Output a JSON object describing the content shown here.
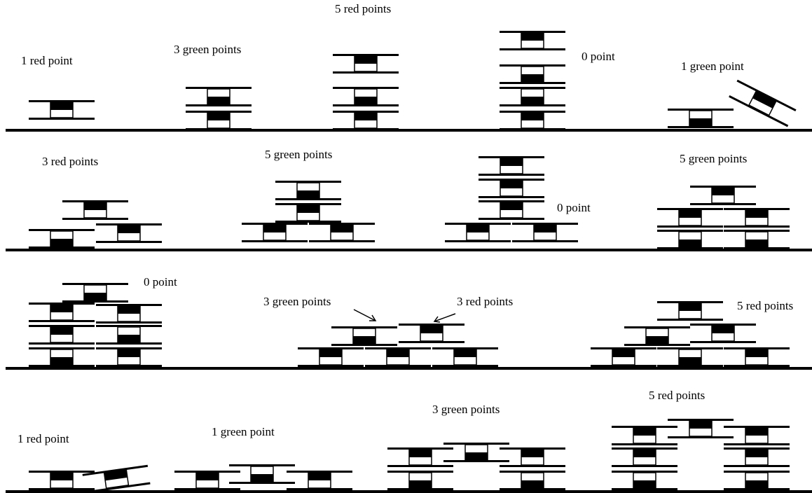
{
  "labels": [
    "1 red point",
    "3 green points",
    "5 red points",
    "0 point",
    "1 green point",
    "3 red points",
    "5 green points",
    "0 point",
    "5 green points",
    "0 point",
    "3 green points",
    "3 red points",
    "5 red points",
    "1 red point",
    "1 green point",
    "3 green points",
    "5 red points"
  ]
}
